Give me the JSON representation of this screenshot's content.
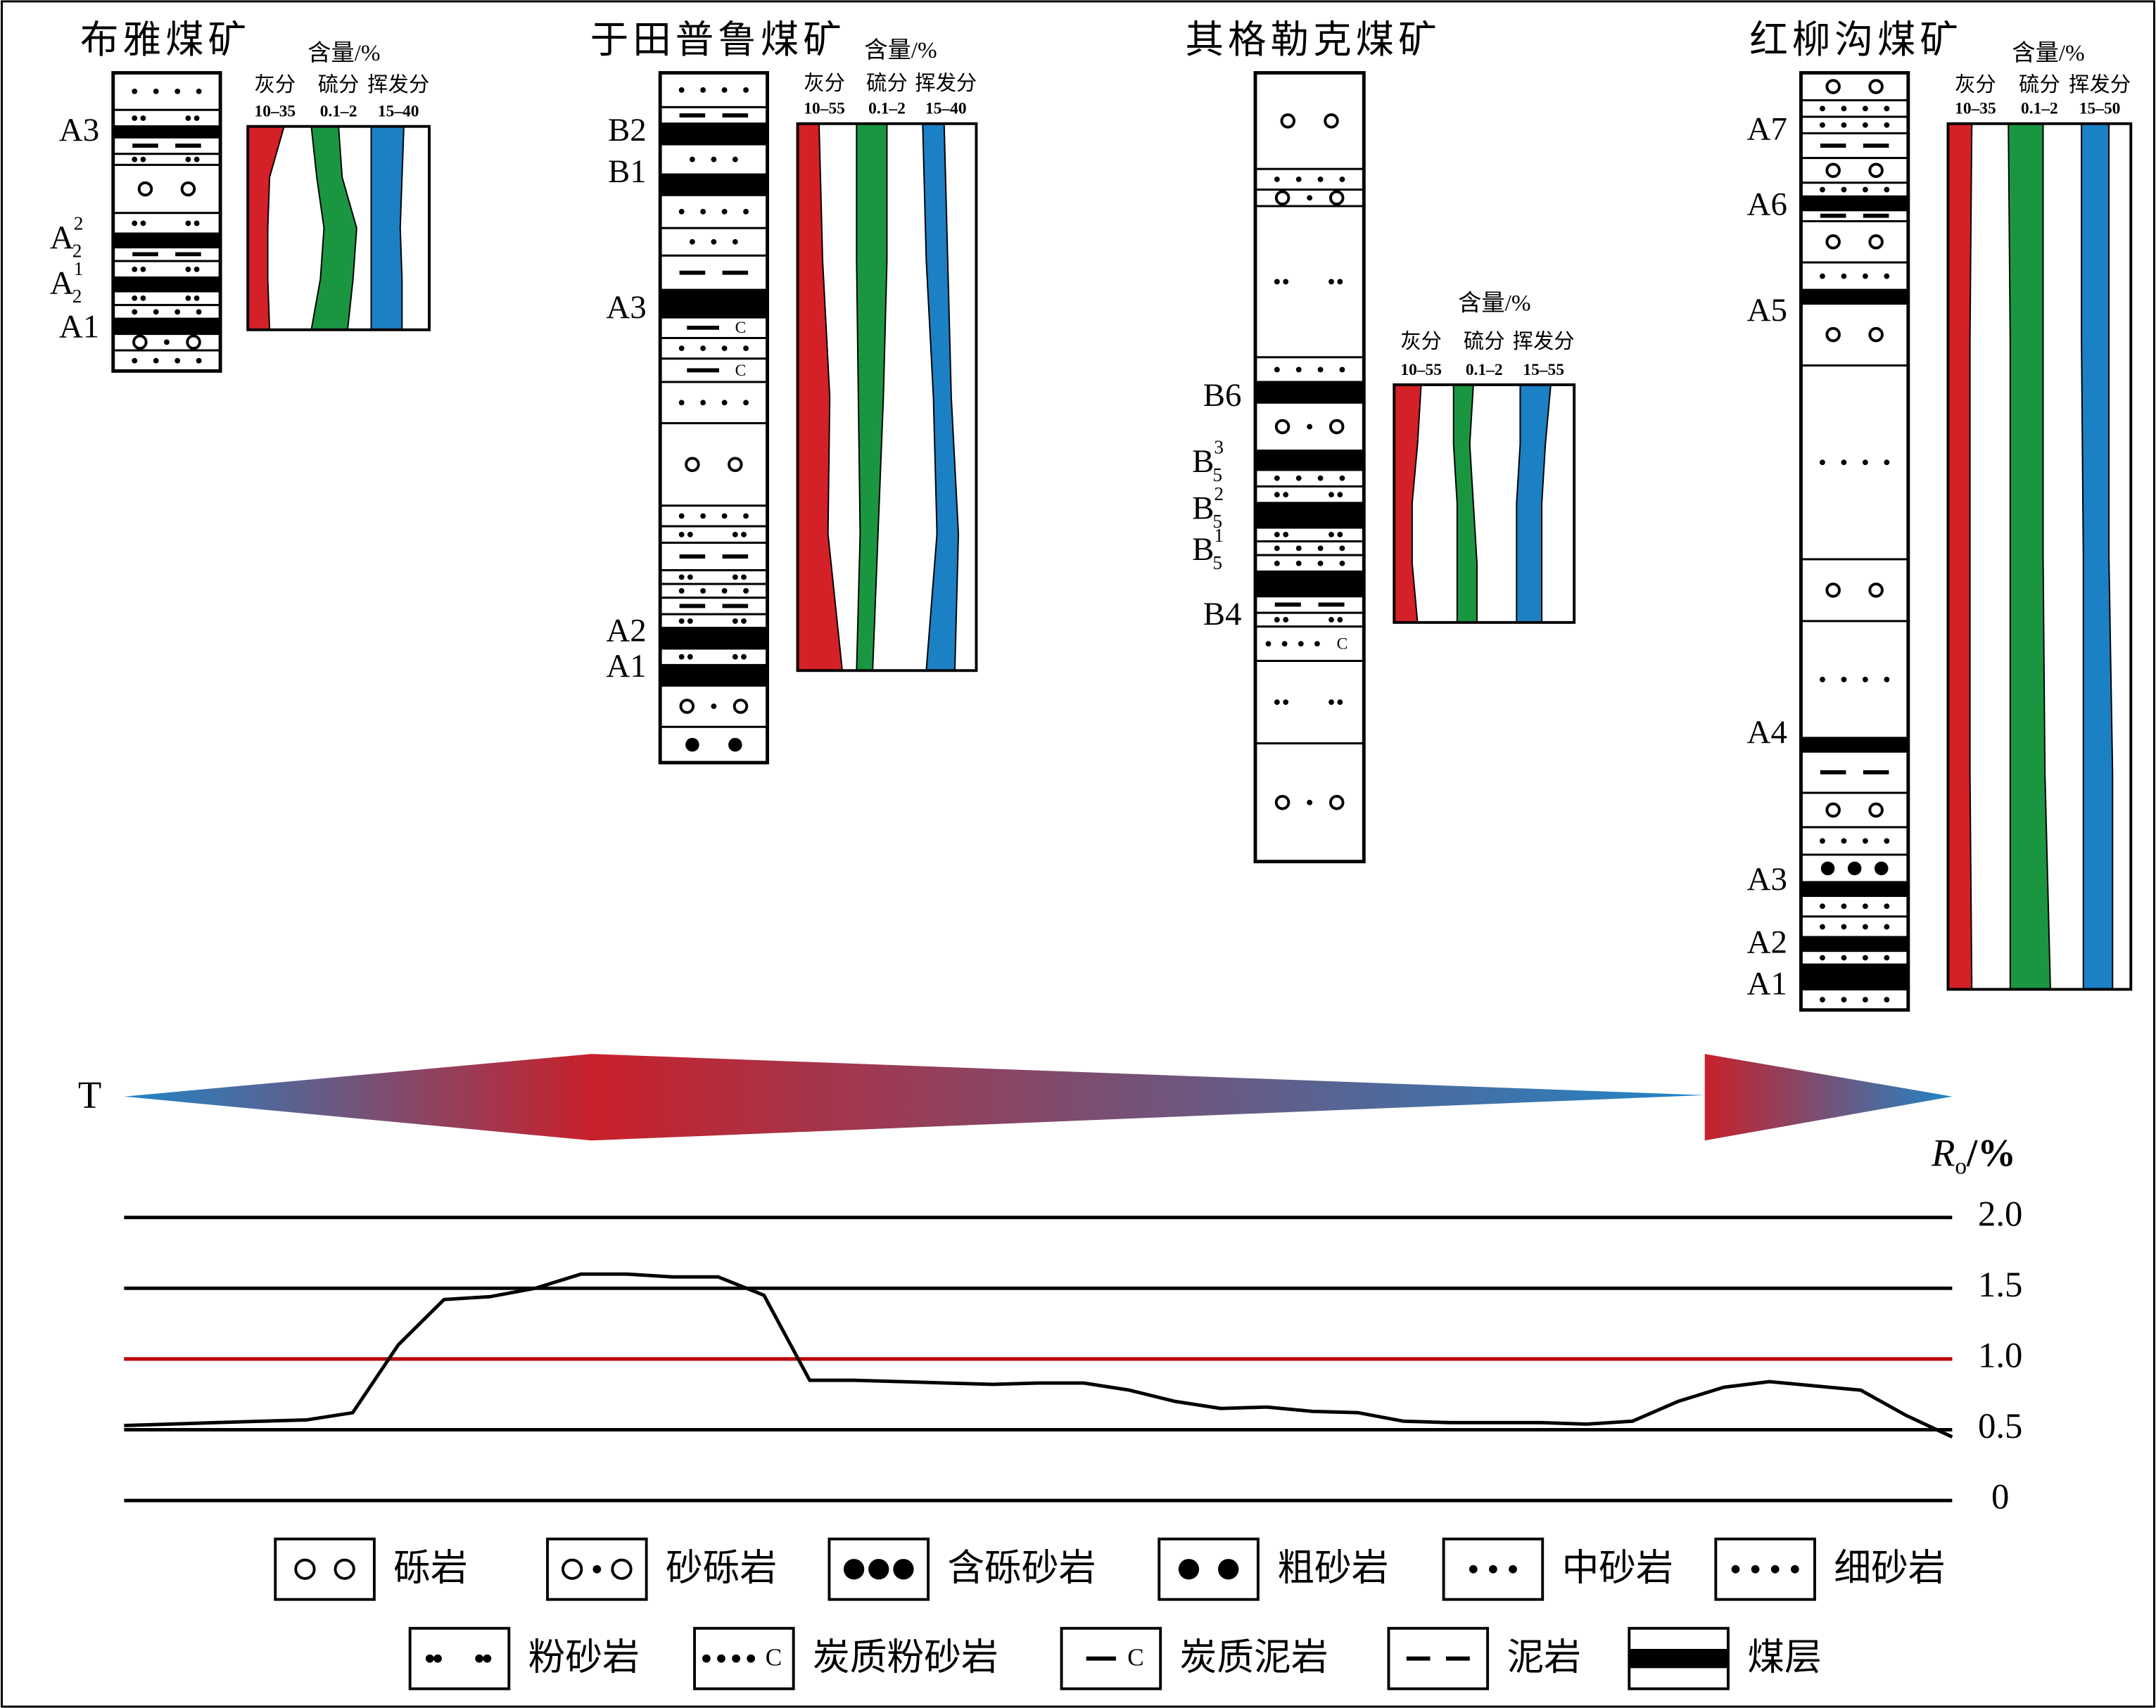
{
  "columns": [
    {
      "title": "布雅煤矿",
      "content_header": {
        "title": "含量/%",
        "names": [
          "灰分",
          "硫分",
          "挥发分"
        ],
        "ranges": [
          "10–35",
          "0.1–2",
          "15–40"
        ]
      },
      "seams": [
        {
          "base": "A3"
        },
        {
          "base": "A",
          "sub": "2",
          "sup": "2"
        },
        {
          "base": "A",
          "sub": "2",
          "sup": "1"
        },
        {
          "base": "A1"
        }
      ]
    },
    {
      "title": "于田普鲁煤矿",
      "content_header": {
        "title": "含量/%",
        "names": [
          "灰分",
          "硫分",
          "挥发分"
        ],
        "ranges": [
          "10–55",
          "0.1–2",
          "15–40"
        ]
      },
      "seams": [
        {
          "base": "B2"
        },
        {
          "base": "B1"
        },
        {
          "base": "A3"
        },
        {
          "base": "A2"
        },
        {
          "base": "A1"
        }
      ]
    },
    {
      "title": "其格勒克煤矿",
      "content_header": {
        "title": "含量/%",
        "names": [
          "灰分",
          "硫分",
          "挥发分"
        ],
        "ranges": [
          "10–55",
          "0.1–2",
          "15–55"
        ]
      },
      "seams": [
        {
          "base": "B6"
        },
        {
          "base": "B",
          "sub": "5",
          "sup": "3"
        },
        {
          "base": "B",
          "sub": "5",
          "sup": "2"
        },
        {
          "base": "B",
          "sub": "5",
          "sup": "1"
        },
        {
          "base": "B4"
        }
      ]
    },
    {
      "title": "红柳沟煤矿",
      "content_header": {
        "title": "含量/%",
        "names": [
          "灰分",
          "硫分",
          "挥发分"
        ],
        "ranges": [
          "10–35",
          "0.1–2",
          "15–50"
        ]
      },
      "seams": [
        {
          "base": "A7"
        },
        {
          "base": "A6"
        },
        {
          "base": "A5"
        },
        {
          "base": "A4"
        },
        {
          "base": "A3"
        },
        {
          "base": "A2"
        },
        {
          "base": "A1"
        }
      ]
    }
  ],
  "pattern_mark": "C",
  "trend_label": "T",
  "ro_chart": {
    "axis_title": {
      "symbol": "R",
      "subscript": "o",
      "unit": "/%"
    },
    "ylim": [
      0,
      2
    ],
    "yticks": [
      {
        "value": 2,
        "label": "2.0"
      },
      1.5,
      {
        "value": 1,
        "label": "1.0"
      },
      0.5,
      0
    ],
    "reference_line": {
      "value": 1,
      "color": "#c00000"
    },
    "color": "#000000",
    "values": [
      0.53,
      0.54,
      0.55,
      0.56,
      0.57,
      0.62,
      1.1,
      1.42,
      1.44,
      1.5,
      1.6,
      1.6,
      1.58,
      1.58,
      1.45,
      0.85,
      0.85,
      0.84,
      0.83,
      0.82,
      0.83,
      0.83,
      0.78,
      0.7,
      0.65,
      0.66,
      0.63,
      0.62,
      0.56,
      0.55,
      0.55,
      0.55,
      0.54,
      0.56,
      0.7,
      0.8,
      0.84,
      0.81,
      0.78,
      0.6,
      0.45
    ]
  },
  "legend": [
    "砾岩",
    "砂砾岩",
    "含砾砂岩",
    "粗砂岩",
    "中砂岩",
    "细砂岩",
    "粉砂岩",
    "炭质粉砂岩",
    "炭质泥岩",
    "泥岩",
    "煤层"
  ]
}
